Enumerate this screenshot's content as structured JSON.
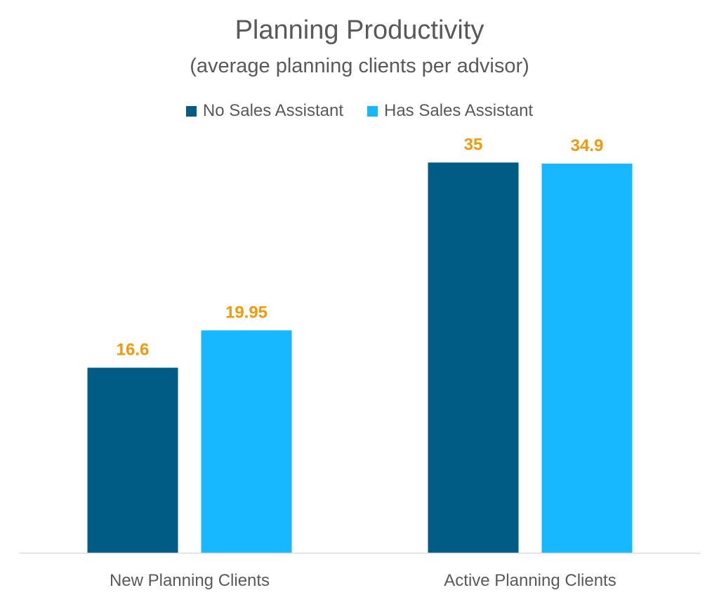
{
  "chart_data": {
    "type": "bar",
    "title": "Planning Productivity",
    "subtitle": "(average planning clients per advisor)",
    "categories": [
      "New Planning Clients",
      "Active Planning Clients"
    ],
    "series": [
      {
        "name": "No Sales Assistant",
        "values": [
          16.6,
          35
        ],
        "labels": [
          "16.6",
          "35"
        ],
        "color": "#005c84"
      },
      {
        "name": "Has Sales Assistant",
        "values": [
          19.95,
          34.9
        ],
        "labels": [
          "19.95",
          "34.9"
        ],
        "color": "#17b8ff"
      }
    ],
    "ylim": [
      0,
      40
    ],
    "xlabel": "",
    "ylabel": "",
    "grid": false,
    "legend": "top",
    "label_color": "#f0990a"
  }
}
